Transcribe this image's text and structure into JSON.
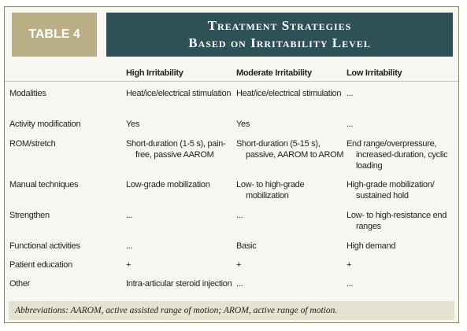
{
  "header": {
    "label": "TABLE 4",
    "title": [
      "Treatment Strategies",
      "Based on Irritability Level"
    ]
  },
  "table": {
    "columns": [
      "High Irritability",
      "Moderate Irritability",
      "Low Irritability"
    ],
    "rows": [
      {
        "label": "Modalities",
        "cells": [
          "Heat/ice/electrical stimulation",
          "Heat/ice/electrical stimulation",
          "..."
        ]
      },
      {
        "label": "Activity modification",
        "cells": [
          "Yes",
          "Yes",
          "..."
        ]
      },
      {
        "label": "ROM/stretch",
        "cells": [
          "Short-duration (1-5 s), pain-free, passive AAROM",
          "Short-duration (5-15 s), passive, AAROM to AROM",
          "End range/overpressure, increased-duration, cyclic loading"
        ]
      },
      {
        "label": "Manual techniques",
        "cells": [
          "Low-grade mobilization",
          "Low- to high-grade mobilization",
          "High-grade mobilization/ sustained hold"
        ]
      },
      {
        "label": "Strengthen",
        "cells": [
          "...",
          "...",
          "Low- to high-resistance end ranges"
        ]
      },
      {
        "label": "Functional activities",
        "cells": [
          "...",
          "Basic",
          "High demand"
        ]
      },
      {
        "label": "Patient education",
        "cells": [
          "+",
          "+",
          "+"
        ]
      },
      {
        "label": "Other",
        "cells": [
          "Intra-articular steroid injection",
          "...",
          "..."
        ]
      }
    ]
  },
  "footnote": "Abbreviations: AAROM, active assisted range of motion; AROM, active range of motion."
}
